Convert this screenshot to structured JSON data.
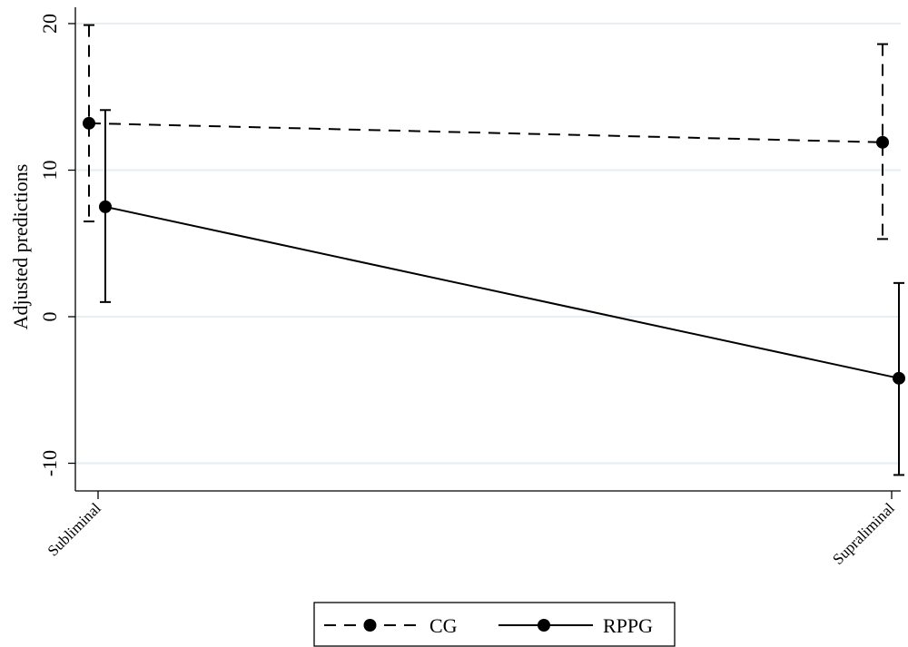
{
  "chart_data": {
    "type": "line",
    "title": "",
    "xlabel": "",
    "ylabel": "Adjusted predictions",
    "categories": [
      "Subliminal",
      "Supraliminal"
    ],
    "ylim": [
      -12,
      21
    ],
    "yticks": [
      -10,
      0,
      10,
      20
    ],
    "grid": true,
    "legend_position": "bottom",
    "series": [
      {
        "name": "CG",
        "line_style": "dashed",
        "values": [
          13.2,
          11.9
        ],
        "ci_low": [
          6.5,
          5.3
        ],
        "ci_high": [
          19.9,
          18.6
        ]
      },
      {
        "name": "RPPG",
        "line_style": "solid",
        "values": [
          7.5,
          -4.2
        ],
        "ci_low": [
          1.0,
          -10.8
        ],
        "ci_high": [
          14.1,
          2.3
        ]
      }
    ]
  }
}
